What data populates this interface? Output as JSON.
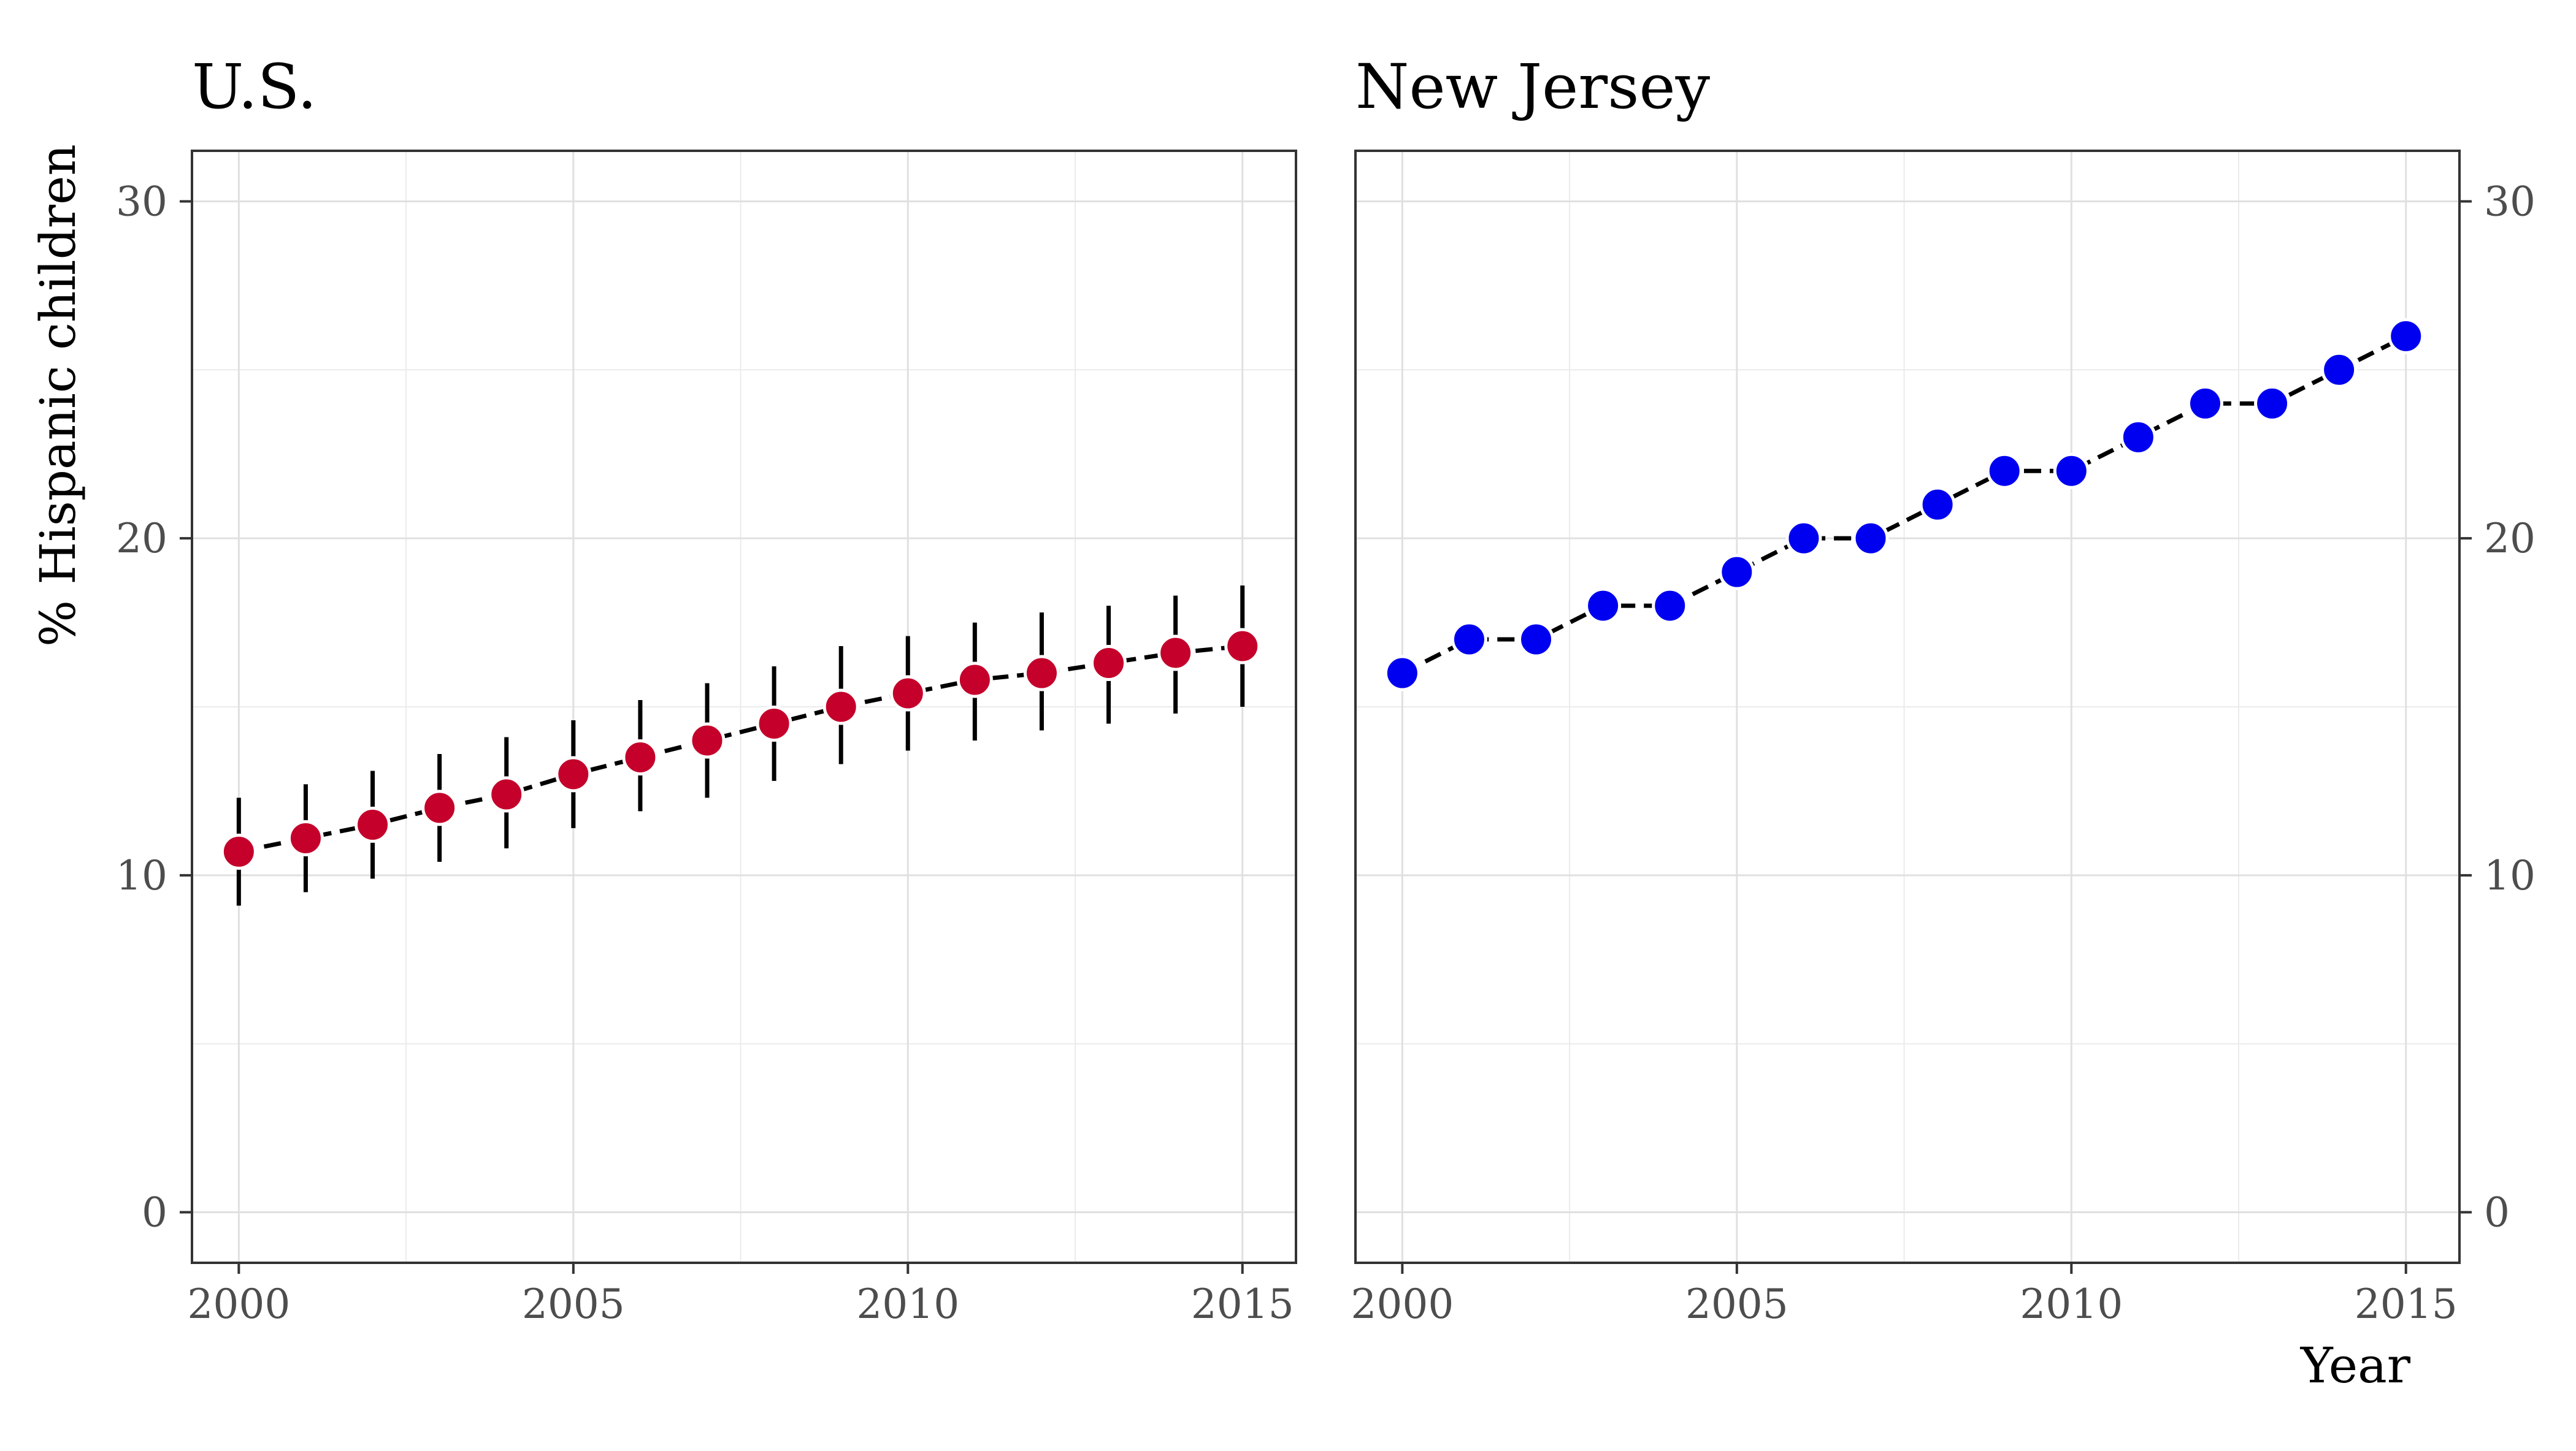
{
  "chart_data": [
    {
      "type": "line",
      "title": "U.S.",
      "xlabel": "",
      "ylabel": "% Hispanic children",
      "xlim": [
        1999.3,
        2015.8
      ],
      "ylim": [
        -1.5,
        31.5
      ],
      "x_ticks": [
        "2000",
        "2005",
        "2010",
        "2015"
      ],
      "y_ticks": [
        "0",
        "10",
        "20",
        "30"
      ],
      "y_axis_side": "left",
      "grid": true,
      "point_color": "#c4002b",
      "line_style": "dashed",
      "error_bars": true,
      "series": [
        {
          "x": [
            2000,
            2001,
            2002,
            2003,
            2004,
            2005,
            2006,
            2007,
            2008,
            2009,
            2010,
            2011,
            2012,
            2013,
            2014,
            2015
          ],
          "y": [
            10.7,
            11.1,
            11.5,
            12.0,
            12.4,
            13.0,
            13.5,
            14.0,
            14.5,
            15.0,
            15.4,
            15.8,
            16.0,
            16.3,
            16.6,
            16.8
          ],
          "y_low": [
            9.1,
            9.5,
            9.9,
            10.4,
            10.8,
            11.4,
            11.9,
            12.3,
            12.8,
            13.3,
            13.7,
            14.0,
            14.3,
            14.5,
            14.8,
            15.0
          ],
          "y_high": [
            12.3,
            12.7,
            13.1,
            13.6,
            14.1,
            14.6,
            15.2,
            15.7,
            16.2,
            16.8,
            17.1,
            17.5,
            17.8,
            18.0,
            18.3,
            18.6
          ]
        }
      ]
    },
    {
      "type": "line",
      "title": "New Jersey",
      "xlabel": "Year",
      "ylabel": "",
      "xlim": [
        1999.3,
        2015.8
      ],
      "ylim": [
        -1.5,
        31.5
      ],
      "x_ticks": [
        "2000",
        "2005",
        "2010",
        "2015"
      ],
      "y_ticks": [
        "0",
        "10",
        "20",
        "30"
      ],
      "y_axis_side": "right",
      "grid": true,
      "point_color": "#0000f0",
      "line_style": "dashed",
      "error_bars": false,
      "series": [
        {
          "x": [
            2000,
            2001,
            2002,
            2003,
            2004,
            2005,
            2006,
            2007,
            2008,
            2009,
            2010,
            2011,
            2012,
            2013,
            2014,
            2015
          ],
          "y": [
            16,
            17,
            17,
            18,
            18,
            19,
            20,
            20,
            21,
            22,
            22,
            23,
            24,
            24,
            25,
            26
          ]
        }
      ]
    }
  ]
}
